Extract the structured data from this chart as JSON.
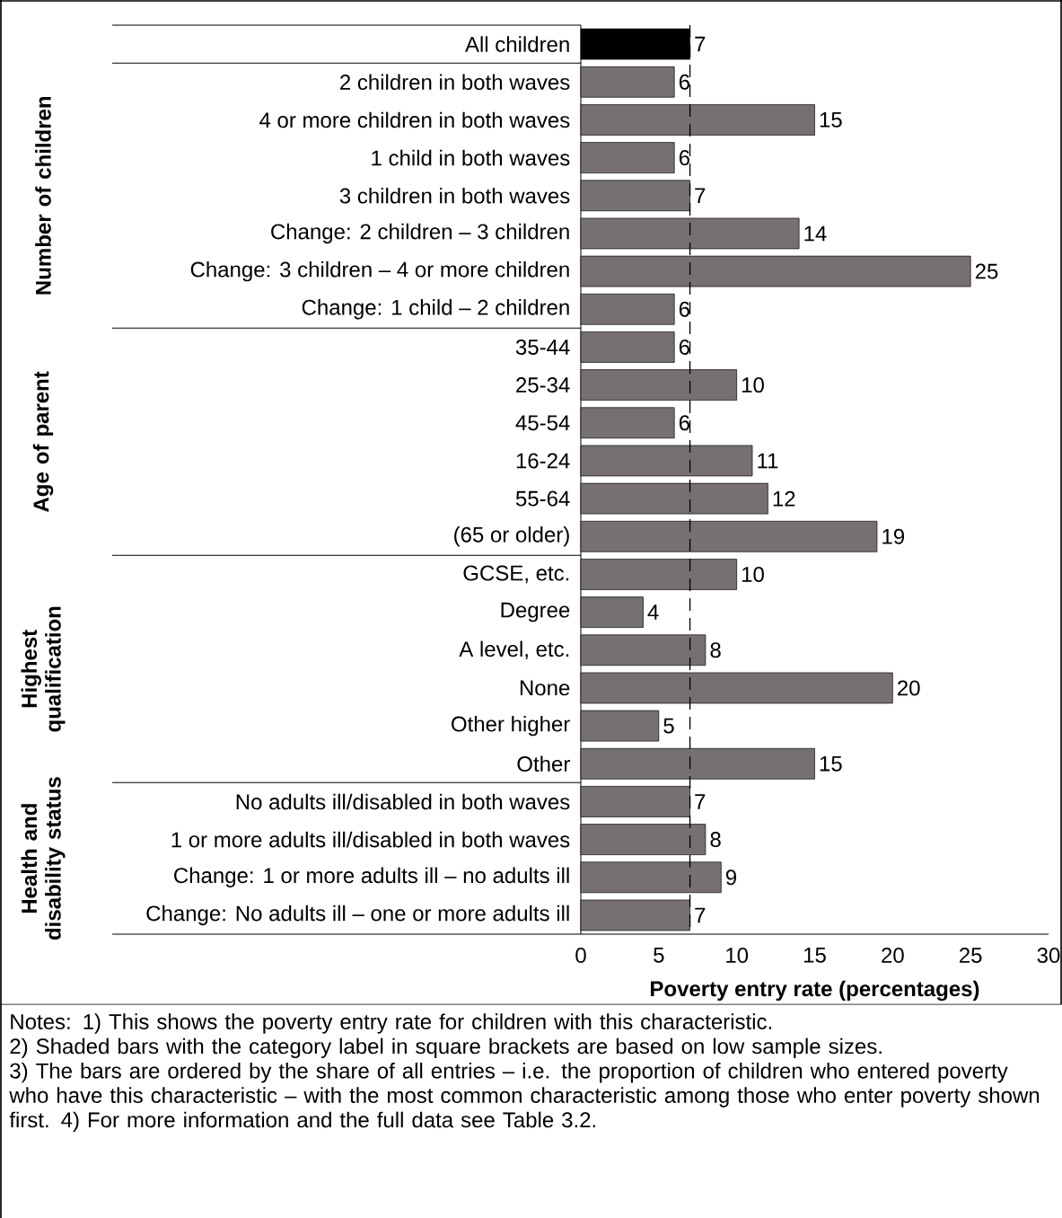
{
  "chart_data": {
    "type": "bar",
    "orientation": "horizontal",
    "categories": [
      "All children",
      "2 children in both waves",
      "4 or more children in both waves",
      "1 child in both waves",
      "3 children in both waves",
      "Change: 2 children – 3 children",
      "Change: 3 children – 4 or more children",
      "Change: 1 child – 2 children",
      "35-44",
      "25-34",
      "45-54",
      "16-24",
      "55-64",
      "(65 or older)",
      "GCSE, etc.",
      "Degree",
      "A level, etc.",
      "None",
      "Other higher",
      "Other",
      "No adults ill/disabled in both waves",
      "1 or more adults ill/disabled in both waves",
      "Change: 1 or more adults ill – no adults ill",
      "Change: No adults ill – one or more adults ill"
    ],
    "values": [
      7,
      6,
      15,
      6,
      7,
      14,
      25,
      6,
      6,
      10,
      6,
      11,
      12,
      19,
      10,
      4,
      8,
      20,
      5,
      15,
      7,
      8,
      9,
      7
    ],
    "colors": [
      "#000000",
      "#767170",
      "#767170",
      "#767170",
      "#767170",
      "#767170",
      "#767170",
      "#767170",
      "#767170",
      "#767170",
      "#767170",
      "#767170",
      "#767170",
      "#767170",
      "#767170",
      "#767170",
      "#767170",
      "#767170",
      "#767170",
      "#767170",
      "#767170",
      "#767170",
      "#767170",
      "#767170"
    ],
    "data_labels": true,
    "xlim": [
      0,
      30
    ],
    "xticks": [
      0,
      5,
      10,
      15,
      20,
      25,
      30
    ],
    "xlabel": "Poverty entry rate (percentages)",
    "ref_lines": [
      {
        "axis": "x",
        "value": 7,
        "color": "#000000",
        "line_style": "dashed"
      }
    ],
    "annotations": [
      "Number of children",
      "Age of parent",
      "Highest qualification",
      "Health and disability status",
      "Notes: 1) This shows the poverty entry rate for children with this characteristic.",
      "2) Shaded bars with the category label in square brackets are based on low sample sizes.",
      "3) The bars are ordered by the share of all entries – i.e. the proportion of children who entered poverty who have this characteristic – with the most common characteristic among those who enter poverty shown first. 4) For more information and the full data see Table 3.2."
    ]
  }
}
